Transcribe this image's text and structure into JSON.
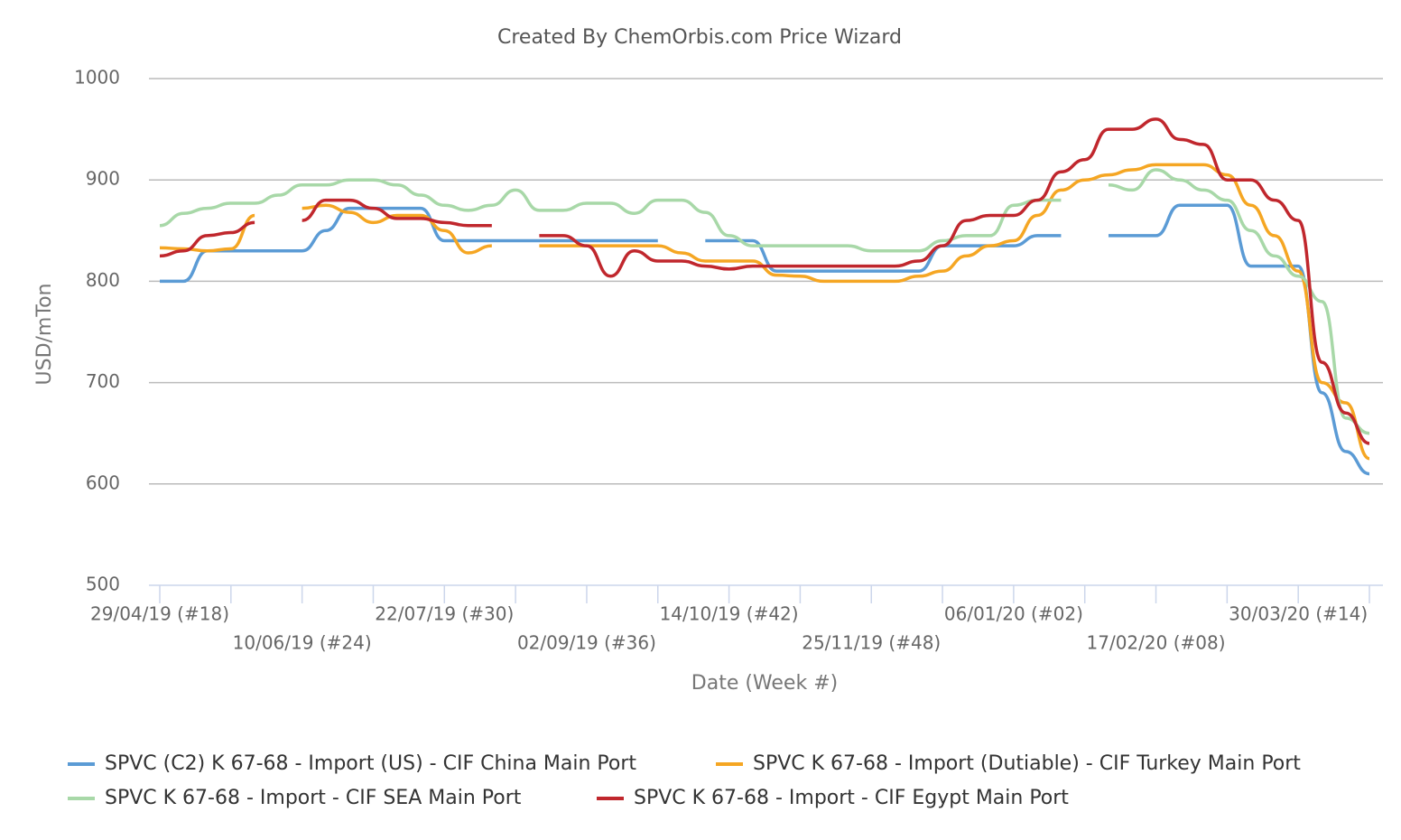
{
  "chart_data": {
    "type": "line",
    "title": "Created By ChemOrbis.com Price Wizard",
    "x_label": "Date (Week #)",
    "y_label": "USD/mTon",
    "ylim": [
      500,
      1000
    ],
    "yticks": [
      500,
      600,
      700,
      800,
      900,
      1000
    ],
    "grid": true,
    "legend": "bottom",
    "categories": [
      "29/04/19 (#18)",
      null,
      null,
      null,
      null,
      null,
      "10/06/19 (#24)",
      null,
      null,
      null,
      null,
      null,
      "22/07/19 (#30)",
      null,
      null,
      null,
      null,
      null,
      "02/09/19 (#36)",
      null,
      null,
      null,
      null,
      null,
      "14/10/19 (#42)",
      null,
      null,
      null,
      null,
      null,
      "25/11/19 (#48)",
      null,
      null,
      null,
      null,
      null,
      "06/01/20 (#02)",
      null,
      null,
      null,
      null,
      null,
      "17/02/20 (#08)",
      null,
      null,
      null,
      null,
      null,
      "30/03/20 (#14)",
      null,
      null,
      null
    ],
    "series": [
      {
        "name": "SPVC (C2) K 67-68 - Import (US) - CIF China Main Port",
        "color": "#5b9bd5",
        "values": [
          800,
          800,
          830,
          830,
          830,
          830,
          830,
          850,
          872,
          872,
          872,
          872,
          840,
          840,
          840,
          840,
          840,
          840,
          840,
          840,
          840,
          840,
          null,
          840,
          840,
          840,
          810,
          810,
          810,
          810,
          810,
          810,
          810,
          835,
          835,
          835,
          835,
          845,
          845,
          null,
          845,
          845,
          845,
          875,
          875,
          875,
          815,
          815,
          815,
          690,
          632,
          610
        ]
      },
      {
        "name": "SPVC K 67-68 - Import (Dutiable) - CIF Turkey Main Port",
        "color": "#f5a623",
        "values": [
          833,
          832,
          830,
          832,
          865,
          null,
          872,
          875,
          868,
          858,
          865,
          865,
          850,
          828,
          835,
          null,
          835,
          835,
          835,
          835,
          835,
          835,
          828,
          820,
          820,
          820,
          806,
          805,
          800,
          800,
          800,
          800,
          805,
          810,
          825,
          835,
          840,
          865,
          890,
          900,
          905,
          910,
          915,
          915,
          915,
          905,
          875,
          845,
          810,
          700,
          680,
          625
        ]
      },
      {
        "name": "SPVC K 67-68 - Import - CIF SEA Main Port",
        "color": "#a8d8a8",
        "values": [
          855,
          867,
          872,
          877,
          877,
          885,
          895,
          895,
          900,
          900,
          895,
          885,
          875,
          870,
          875,
          890,
          870,
          870,
          877,
          877,
          867,
          880,
          880,
          868,
          845,
          835,
          835,
          835,
          835,
          835,
          830,
          830,
          830,
          840,
          845,
          845,
          875,
          880,
          880,
          null,
          895,
          890,
          910,
          900,
          890,
          880,
          850,
          825,
          805,
          780,
          665,
          650
        ]
      },
      {
        "name": "SPVC K 67-68 - Import - CIF Egypt Main Port",
        "color": "#c0272d",
        "values": [
          825,
          830,
          845,
          848,
          858,
          null,
          860,
          880,
          880,
          872,
          862,
          862,
          858,
          855,
          855,
          null,
          845,
          845,
          835,
          805,
          830,
          820,
          820,
          815,
          812,
          815,
          815,
          815,
          815,
          815,
          815,
          815,
          820,
          835,
          860,
          865,
          865,
          880,
          908,
          920,
          950,
          950,
          960,
          940,
          935,
          900,
          900,
          880,
          860,
          720,
          670,
          640
        ]
      }
    ]
  }
}
